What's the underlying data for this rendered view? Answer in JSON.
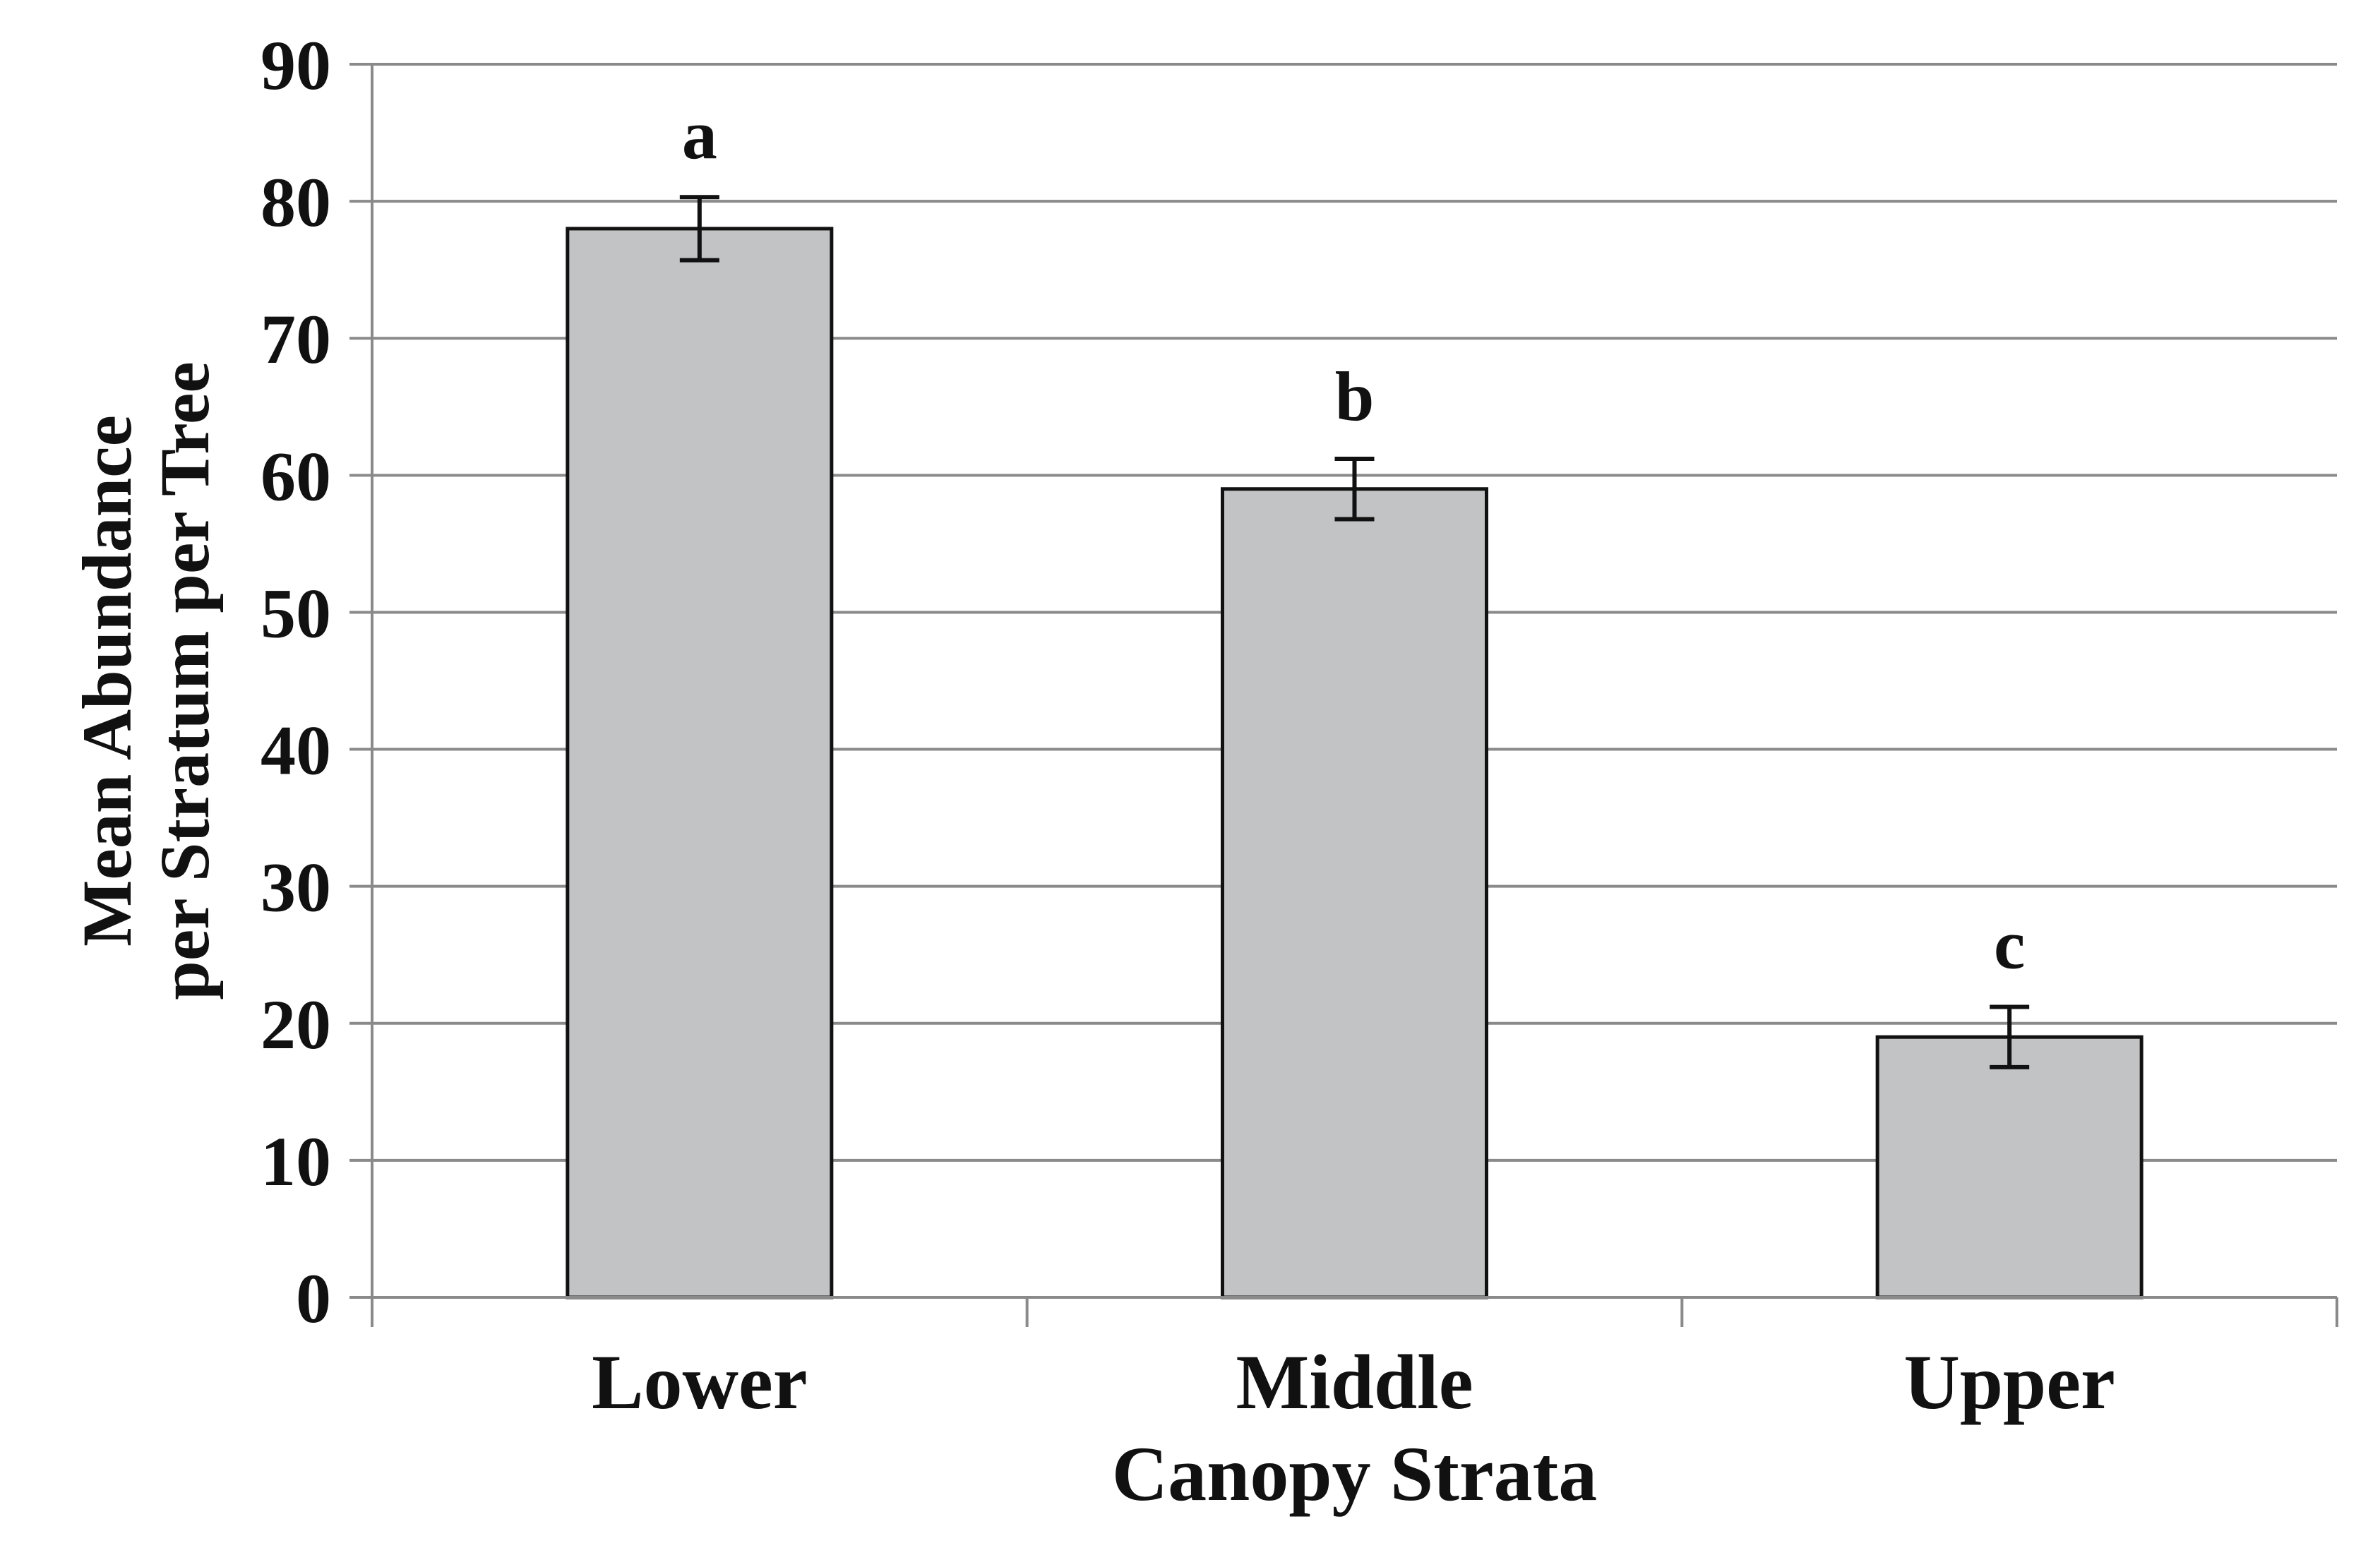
{
  "chart_data": {
    "type": "bar",
    "title": "",
    "categories": [
      "Lower",
      "Middle",
      "Upper"
    ],
    "values": [
      78,
      59,
      19
    ],
    "errors": [
      2.3,
      2.2,
      2.2
    ],
    "significance_letters": [
      "a",
      "b",
      "c"
    ],
    "xlabel": "Canopy Strata",
    "ylabel_lines": [
      "Mean Abundance",
      "per Stratum per Tree"
    ],
    "ylim": [
      0,
      90
    ],
    "ytick_step": 10,
    "ytick_labels": [
      "0",
      "10",
      "20",
      "30",
      "40",
      "50",
      "60",
      "70",
      "80",
      "90"
    ],
    "grid": true,
    "legend_position": "none",
    "colors": {
      "bar_fill": "#c1c3c5",
      "bar_border": "#111111",
      "gridline": "#8a8a8a",
      "axis_line": "#8a8a8a",
      "error_bar": "#111111",
      "text": "#111111",
      "background": "#ffffff"
    }
  }
}
